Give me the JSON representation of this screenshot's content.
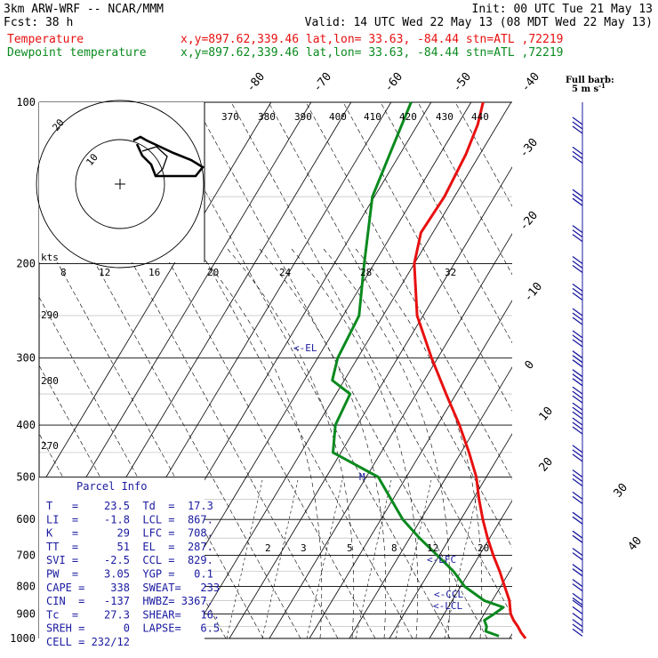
{
  "header": {
    "line1_left": "3km ARW-WRF -- NCAR/MMM",
    "line1_right": "Init: 00 UTC Tue 21 May 13",
    "line2_left": "Fcst:    38 h",
    "line2_right": "Valid: 14 UTC Wed 22 May 13 (08 MDT Wed 22 May 13)",
    "temp_label": "Temperature",
    "temp_info": "x,y=897.62,339.46   lat,lon= 33.63, -84.44  stn=ATL ,72219",
    "dew_label": "Dewpoint temperature",
    "dew_info": "x,y=897.62,339.46   lat,lon= 33.63, -84.44  stn=ATL ,72219"
  },
  "colors": {
    "temperature": "#e81010",
    "dewpoint": "#0a8a1e",
    "barb": "#1a1aa0",
    "info": "#1a1aa0"
  },
  "barb_key": {
    "title": "Full barb:",
    "value": "5 m s",
    "sup": "-1"
  },
  "pressure_labels": [
    "100",
    "200",
    "300",
    "400",
    "500",
    "600",
    "700",
    "800",
    "900",
    "1000"
  ],
  "isotherm_labels_top": [
    "-80",
    "-70",
    "-60",
    "-50",
    "-40"
  ],
  "isotherm_labels_right": [
    "-30",
    "-20",
    "-10",
    "0",
    "10",
    "20",
    "30",
    "40"
  ],
  "theta_labels": [
    "370",
    "380",
    "390",
    "400",
    "410",
    "420",
    "430",
    "440"
  ],
  "theta_labels_left": [
    "290",
    "280",
    "270"
  ],
  "mixing_ratio_labels": [
    "2",
    "3",
    "5",
    "8",
    "12",
    "20"
  ],
  "hodograph": {
    "rings": [
      "10",
      "20"
    ],
    "speed_unit": "kts",
    "speed_ticks": [
      "8",
      "12",
      "16",
      "20",
      "24",
      "28",
      "32"
    ]
  },
  "annotations": {
    "el": "<-EL",
    "lfc": "<-LFC",
    "ccl": "<-CCL",
    "lcl": "<-LCL",
    "parcel_marker": "M"
  },
  "parcel_info": {
    "title": "Parcel Info",
    "rows": [
      "T   =    23.5  Td  =  17.3",
      "LI  =    -1.8  LCL =  867.",
      "K   =      29  LFC =  708.",
      "TT  =      51  EL  =  287.",
      "SVI =    -2.5  CCL =  829.",
      "PW  =    3.05  YGP =   0.1",
      "CAPE =    338  SWEAT=   233",
      "CIN  =   -137  HWBZ= 3367.",
      "Tc  =    27.3  SHEAR=   16.",
      "SREH =      0  LAPSE=   6.5",
      "CELL = 232/12"
    ]
  },
  "chart_data": {
    "type": "line",
    "title": "",
    "xlabel": "",
    "ylabel": "",
    "y_axis": "pressure (hPa), log scale",
    "ylim": [
      1000,
      100
    ],
    "series": [
      {
        "name": "Temperature",
        "points": [
          {
            "p": 1000,
            "t": 24.0
          },
          {
            "p": 975,
            "t": 22.0
          },
          {
            "p": 950,
            "t": 20.3
          },
          {
            "p": 925,
            "t": 18.3
          },
          {
            "p": 900,
            "t": 16.6
          },
          {
            "p": 850,
            "t": 14.3
          },
          {
            "p": 800,
            "t": 11.0
          },
          {
            "p": 750,
            "t": 7.5
          },
          {
            "p": 700,
            "t": 3.5
          },
          {
            "p": 650,
            "t": -0.5
          },
          {
            "p": 600,
            "t": -4.5
          },
          {
            "p": 550,
            "t": -8.5
          },
          {
            "p": 500,
            "t": -12.5
          },
          {
            "p": 450,
            "t": -18.0
          },
          {
            "p": 400,
            "t": -24.5
          },
          {
            "p": 350,
            "t": -32.5
          },
          {
            "p": 300,
            "t": -41.5
          },
          {
            "p": 250,
            "t": -51.5
          },
          {
            "p": 200,
            "t": -60.0
          },
          {
            "p": 175,
            "t": -63.0
          },
          {
            "p": 150,
            "t": -62.5
          },
          {
            "p": 125,
            "t": -63.5
          },
          {
            "p": 110,
            "t": -65.0
          },
          {
            "p": 100,
            "t": -67.0
          }
        ]
      },
      {
        "name": "Dewpoint temperature",
        "points": [
          {
            "p": 990,
            "t": 17.0
          },
          {
            "p": 970,
            "t": 13.0
          },
          {
            "p": 950,
            "t": 12.5
          },
          {
            "p": 925,
            "t": 11.0
          },
          {
            "p": 900,
            "t": 12.5
          },
          {
            "p": 875,
            "t": 13.8
          },
          {
            "p": 850,
            "t": 8.0
          },
          {
            "p": 800,
            "t": 1.0
          },
          {
            "p": 750,
            "t": -4.0
          },
          {
            "p": 700,
            "t": -10.5
          },
          {
            "p": 650,
            "t": -17.5
          },
          {
            "p": 600,
            "t": -24.5
          },
          {
            "p": 550,
            "t": -30.5
          },
          {
            "p": 500,
            "t": -37.0
          },
          {
            "p": 450,
            "t": -52.0
          },
          {
            "p": 400,
            "t": -55.5
          },
          {
            "p": 350,
            "t": -56.5
          },
          {
            "p": 330,
            "t": -63.0
          },
          {
            "p": 300,
            "t": -65.0
          },
          {
            "p": 250,
            "t": -66.0
          },
          {
            "p": 200,
            "t": -72.5
          },
          {
            "p": 150,
            "t": -80.5
          },
          {
            "p": 120,
            "t": -83.0
          },
          {
            "p": 100,
            "t": -85.0
          }
        ]
      }
    ],
    "wind_barbs_hpa": [
      990,
      970,
      950,
      925,
      900,
      875,
      850,
      800,
      750,
      700,
      650,
      600,
      550,
      500,
      450,
      400,
      375,
      350,
      325,
      300,
      275,
      250,
      225,
      200,
      175,
      150,
      125,
      110
    ]
  }
}
